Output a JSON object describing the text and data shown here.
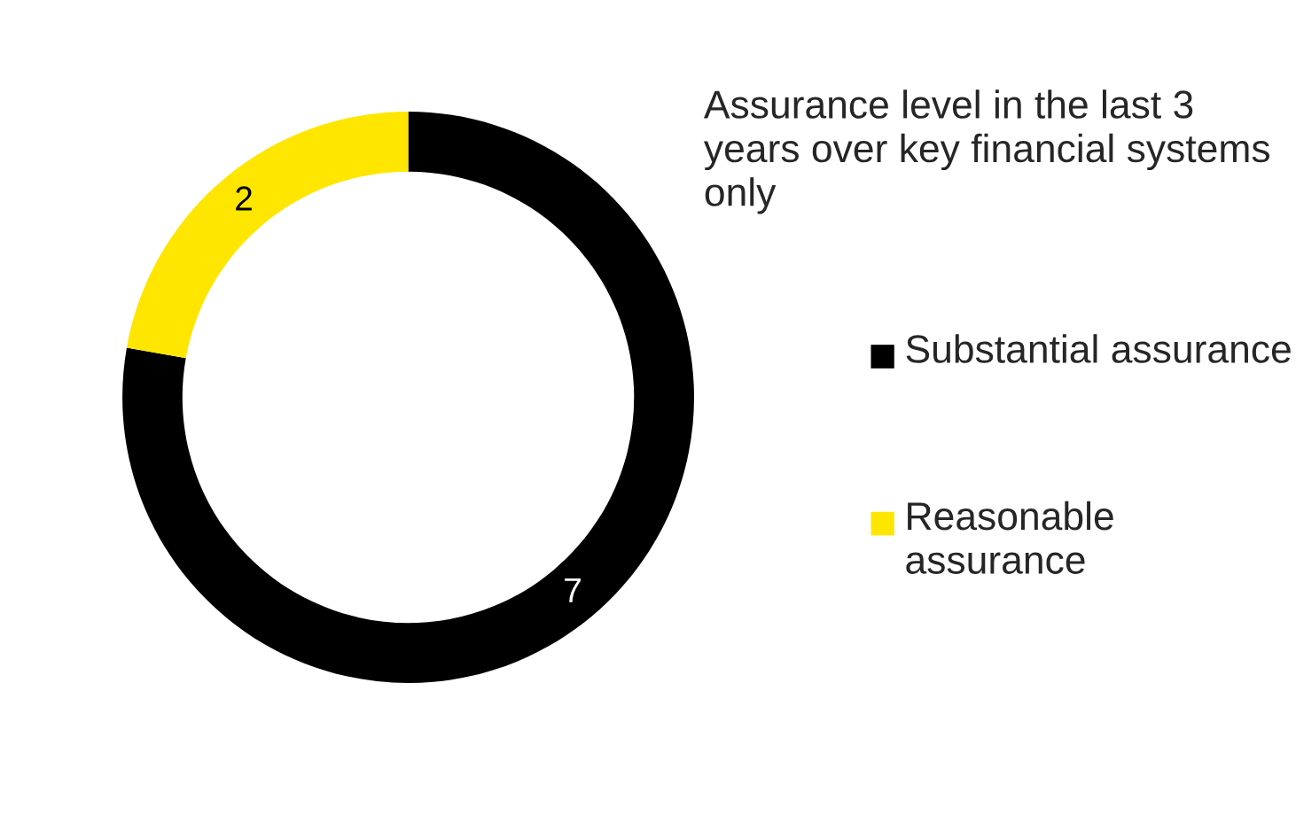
{
  "chart_data": {
    "type": "donut",
    "title": "Assurance level in the last 3 years over key financial systems only",
    "categories": [
      "Substantial assurance",
      "Reasonable assurance"
    ],
    "values": [
      7,
      2
    ],
    "colors": [
      "#000000",
      "#ffe600"
    ],
    "data_labels": true,
    "legend": "right"
  }
}
